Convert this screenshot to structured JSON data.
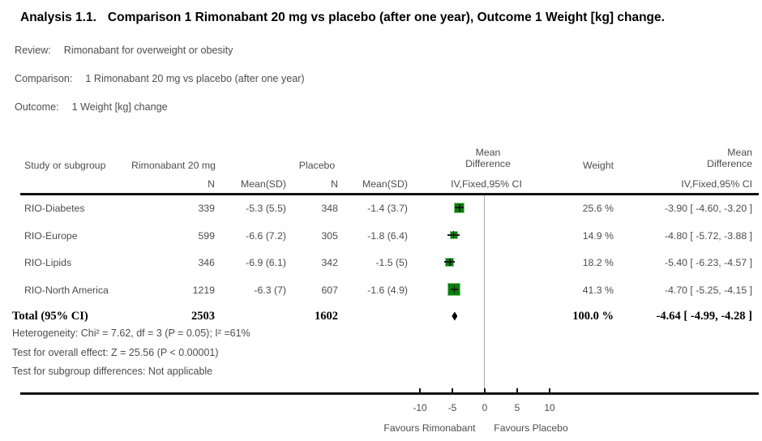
{
  "title": {
    "prefix": "Analysis 1.1.",
    "text": "Comparison 1 Rimonabant 20 mg vs placebo (after one year), Outcome 1 Weight [kg] change."
  },
  "meta": {
    "review_label": "Review:",
    "review": "Rimonabant for overweight or obesity",
    "comparison_label": "Comparison:",
    "comparison": "1 Rimonabant 20 mg vs placebo (after one year)",
    "outcome_label": "Outcome:",
    "outcome": "1 Weight [kg] change"
  },
  "headers": {
    "study": "Study or subgroup",
    "treatment_group": "Rimonabant 20 mg",
    "control_group": "Placebo",
    "n1": "N",
    "mean_sd1": "Mean(SD)",
    "n2": "N",
    "mean_sd2": "Mean(SD)",
    "mean_difference_plot": "Mean\nDifference",
    "ci_method_plot": "IV,Fixed,95% CI",
    "weight": "Weight",
    "mean_difference_right": "Mean\nDifference",
    "ci_method_right": "IV,Fixed,95% CI"
  },
  "chart_data": {
    "type": "forest",
    "effect_measure": "Mean Difference (IV, Fixed, 95% CI)",
    "studies": [
      {
        "name": "RIO-Diabetes",
        "n_treatment": "339",
        "mean_sd_treatment": "-5.3 (5.5)",
        "n_control": "348",
        "mean_sd_control": "-1.4 (3.7)",
        "md": -3.9,
        "ci_low": -4.6,
        "ci_high": -3.2,
        "weight_pct": 25.6,
        "weight_label": "25.6 %",
        "md_label": "-3.90 [ -4.60, -3.20 ]"
      },
      {
        "name": "RIO-Europe",
        "n_treatment": "599",
        "mean_sd_treatment": "-6.6 (7.2)",
        "n_control": "305",
        "mean_sd_control": "-1.8 (6.4)",
        "md": -4.8,
        "ci_low": -5.72,
        "ci_high": -3.88,
        "weight_pct": 14.9,
        "weight_label": "14.9 %",
        "md_label": "-4.80 [ -5.72, -3.88 ]"
      },
      {
        "name": "RIO-Lipids",
        "n_treatment": "346",
        "mean_sd_treatment": "-6.9 (6.1)",
        "n_control": "342",
        "mean_sd_control": "-1.5 (5)",
        "md": -5.4,
        "ci_low": -6.23,
        "ci_high": -4.57,
        "weight_pct": 18.2,
        "weight_label": "18.2 %",
        "md_label": "-5.40 [ -6.23, -4.57 ]"
      },
      {
        "name": "RIO-North America",
        "n_treatment": "1219",
        "mean_sd_treatment": "-6.3 (7)",
        "n_control": "607",
        "mean_sd_control": "-1.6 (4.9)",
        "md": -4.7,
        "ci_low": -5.25,
        "ci_high": -4.15,
        "weight_pct": 41.3,
        "weight_label": "41.3 %",
        "md_label": "-4.70 [ -5.25, -4.15 ]"
      }
    ],
    "total": {
      "label": "Total (95% CI)",
      "n_treatment": "2503",
      "n_control": "1602",
      "md": -4.64,
      "ci_low": -4.99,
      "ci_high": -4.28,
      "weight_label": "100.0 %",
      "md_label": "-4.64 [ -4.99, -4.28 ]"
    },
    "footnotes": [
      "Heterogeneity: Chi² = 7.62, df = 3 (P = 0.05); I² =61%",
      "Test for overall effect: Z = 25.56 (P < 0.00001)",
      "Test for subgroup differences: Not applicable"
    ],
    "axis": {
      "ticks": [
        -10,
        -5,
        0,
        5,
        10
      ],
      "tick_labels": [
        "-10",
        "-5",
        "0",
        "5",
        "10"
      ],
      "favours_left": "Favours Rimonabant",
      "favours_right": "Favours Placebo"
    },
    "colors": {
      "marker_fill": "#0b7d0b",
      "marker_border": "#84c784",
      "ci_line": "#1c1c1c",
      "diamond": "#000000",
      "zero_line": "#ababab",
      "text": "#4d4d4d"
    }
  }
}
